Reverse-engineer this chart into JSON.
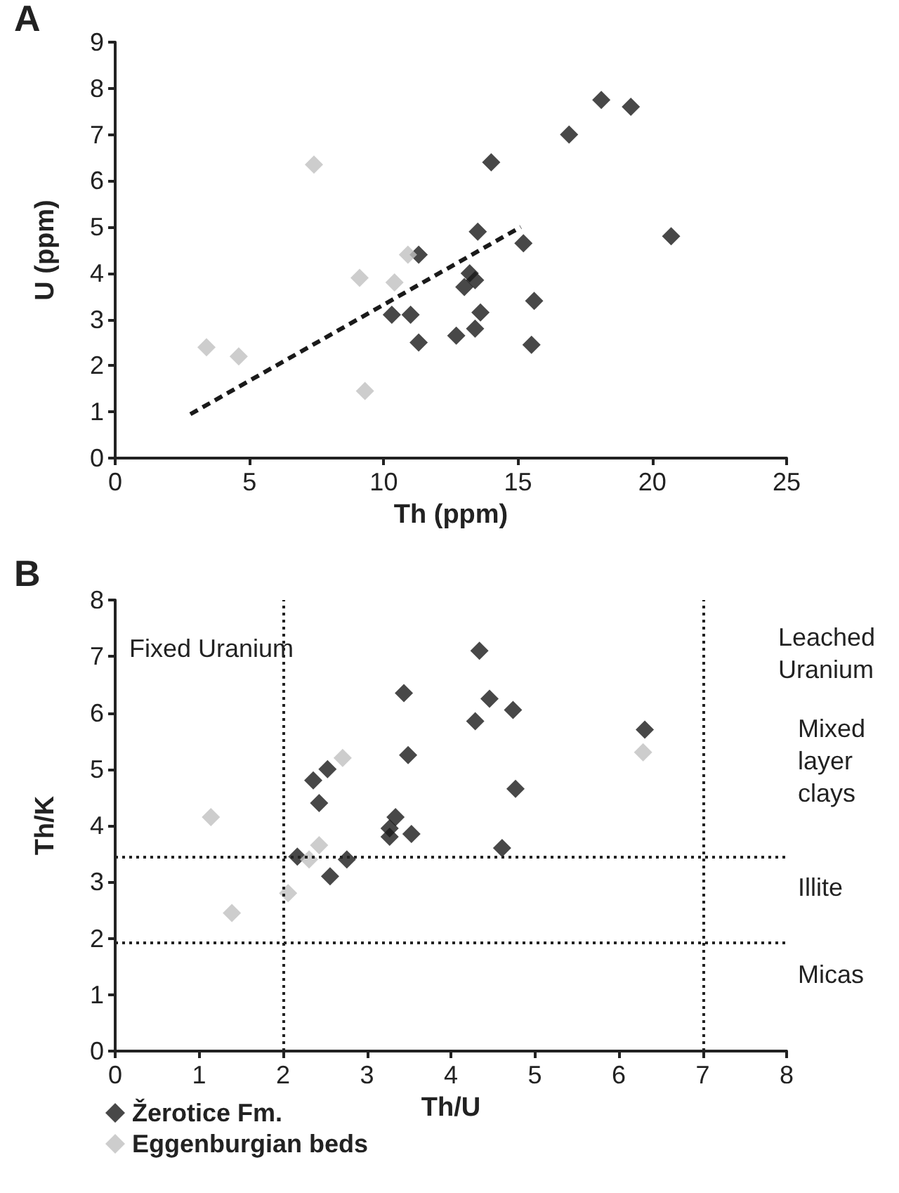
{
  "chart_data": [
    {
      "type": "scatter",
      "title": "A",
      "xlabel": "Th (ppm)",
      "ylabel": "U (ppm)",
      "xlim": [
        0,
        25
      ],
      "xticks": [
        0,
        5,
        10,
        15,
        20,
        25
      ],
      "ylim": [
        0,
        9
      ],
      "yticks": [
        0,
        1,
        2,
        3,
        4,
        5,
        6,
        7,
        8,
        9
      ],
      "grid": false,
      "legend": false,
      "marker": "diamond",
      "series": [
        {
          "color": "#1a1a1a",
          "x": [
            11.3,
            14.0,
            13.5,
            15.2,
            16.9,
            18.1,
            19.2,
            20.7,
            13.2,
            13.4,
            13.0,
            10.3,
            11.0,
            13.6,
            15.6,
            11.3,
            12.7,
            13.4,
            15.5
          ],
          "values": [
            4.4,
            6.4,
            4.9,
            4.65,
            7.0,
            7.75,
            7.6,
            4.8,
            4.0,
            3.85,
            3.7,
            3.1,
            3.1,
            3.15,
            3.4,
            2.5,
            2.65,
            2.8,
            2.45
          ]
        },
        {
          "color": "#c0c0c0",
          "x": [
            7.4,
            10.9,
            9.1,
            10.4,
            3.4,
            4.6,
            9.3
          ],
          "values": [
            6.35,
            4.4,
            3.9,
            3.8,
            2.4,
            2.2,
            1.45
          ]
        },
        {
          "type": "line",
          "color": "#1a1a1a",
          "marker": "none",
          "line_style": "dashed",
          "x": [
            2.8,
            15.1
          ],
          "values": [
            0.95,
            5.0
          ]
        }
      ]
    },
    {
      "type": "scatter",
      "title": "B",
      "xlabel": "Th/U",
      "ylabel": "Th/K",
      "xlim": [
        0,
        8
      ],
      "xticks": [
        0,
        1,
        2,
        3,
        4,
        5,
        6,
        7,
        8
      ],
      "ylim": [
        0,
        8
      ],
      "yticks": [
        0,
        1,
        2,
        3,
        4,
        5,
        6,
        7,
        8
      ],
      "grid": false,
      "legend": "bottom",
      "marker": "diamond",
      "annotations": [
        "Fixed Uranium",
        "Leached Uranium",
        "Mixed layer clays",
        "Illite",
        "Micas"
      ],
      "ref_lines": [
        {
          "axis": "y",
          "value": 3.45,
          "line_style": "dotted"
        },
        {
          "axis": "y",
          "value": 1.93,
          "line_style": "dotted"
        },
        {
          "axis": "x",
          "value": 2,
          "line_style": "dotted"
        },
        {
          "axis": "x",
          "value": 7,
          "line_style": "dotted"
        }
      ],
      "series": [
        {
          "name": "Žerotice Fm.",
          "color": "#1a1a1a",
          "x": [
            4.34,
            3.44,
            4.46,
            4.74,
            4.29,
            3.49,
            2.53,
            2.36,
            2.43,
            4.77,
            3.34,
            3.27,
            3.27,
            3.53,
            4.61,
            2.17,
            2.76,
            2.56,
            6.31
          ],
          "values": [
            7.1,
            6.35,
            6.25,
            6.05,
            5.85,
            5.25,
            5.0,
            4.8,
            4.4,
            4.65,
            4.15,
            3.95,
            3.8,
            3.85,
            3.6,
            3.45,
            3.4,
            3.1,
            5.7
          ]
        },
        {
          "name": "Eggenburgian beds",
          "color": "#c0c0c0",
          "x": [
            2.71,
            1.14,
            2.43,
            2.31,
            2.06,
            1.39,
            6.29
          ],
          "values": [
            5.2,
            4.15,
            3.65,
            3.4,
            2.8,
            2.45,
            5.3
          ]
        }
      ]
    }
  ]
}
